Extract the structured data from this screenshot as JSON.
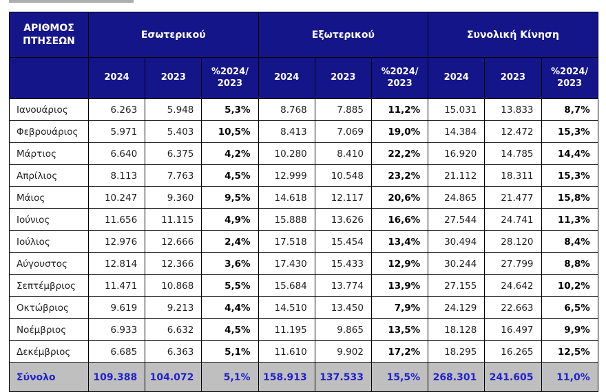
{
  "decoration": {
    "top_rule": "title-underline-fragment"
  },
  "colors": {
    "header_bg": "#15158A",
    "header_text": "#FFFFFF",
    "total_bg": "#BFBFBF",
    "total_text": "#2222CC",
    "border": "#000000",
    "body_text": "#1F1F1F"
  },
  "table": {
    "corner_header": "ΑΡΙΘΜΟΣ ΠΤΗΣΕΩΝ",
    "groups": [
      "Εσωτερικού",
      "Εξωτερικού",
      "Συνολική Κίνηση"
    ],
    "sub_headers": [
      "2024",
      "2023",
      "%2024/ 2023"
    ],
    "rows": [
      {
        "month": "Ιανουάριος",
        "values": [
          "6.263",
          "5.948",
          "5,3%",
          "8.768",
          "7.885",
          "11,2%",
          "15.031",
          "13.833",
          "8,7%"
        ]
      },
      {
        "month": "Φεβρουάριος",
        "values": [
          "5.971",
          "5.403",
          "10,5%",
          "8.413",
          "7.069",
          "19,0%",
          "14.384",
          "12.472",
          "15,3%"
        ]
      },
      {
        "month": "Μάρτιος",
        "values": [
          "6.640",
          "6.375",
          "4,2%",
          "10.280",
          "8.410",
          "22,2%",
          "16.920",
          "14.785",
          "14,4%"
        ]
      },
      {
        "month": "Απρίλιος",
        "values": [
          "8.113",
          "7.763",
          "4,5%",
          "12.999",
          "10.548",
          "23,2%",
          "21.112",
          "18.311",
          "15,3%"
        ]
      },
      {
        "month": "Μάιος",
        "values": [
          "10.247",
          "9.360",
          "9,5%",
          "14.618",
          "12.117",
          "20,6%",
          "24.865",
          "21.477",
          "15,8%"
        ]
      },
      {
        "month": "Ιούνιος",
        "values": [
          "11.656",
          "11.115",
          "4,9%",
          "15.888",
          "13.626",
          "16,6%",
          "27.544",
          "24.741",
          "11,3%"
        ]
      },
      {
        "month": "Ιούλιος",
        "values": [
          "12.976",
          "12.666",
          "2,4%",
          "17.518",
          "15.454",
          "13,4%",
          "30.494",
          "28.120",
          "8,4%"
        ]
      },
      {
        "month": "Αύγουστος",
        "values": [
          "12.814",
          "12.366",
          "3,6%",
          "17.430",
          "15.433",
          "12,9%",
          "30.244",
          "27.799",
          "8,8%"
        ]
      },
      {
        "month": "Σεπτέμβριος",
        "values": [
          "11.471",
          "10.868",
          "5,5%",
          "15.684",
          "13.774",
          "13,9%",
          "27.155",
          "24.642",
          "10,2%"
        ]
      },
      {
        "month": "Οκτώβριος",
        "values": [
          "9.619",
          "9.213",
          "4,4%",
          "14.510",
          "13.450",
          "7,9%",
          "24.129",
          "22.663",
          "6,5%"
        ]
      },
      {
        "month": "Νοέμβριος",
        "values": [
          "6.933",
          "6.632",
          "4,5%",
          "11.195",
          "9.865",
          "13,5%",
          "18.128",
          "16.497",
          "9,9%"
        ]
      },
      {
        "month": "Δεκέμβριος",
        "values": [
          "6.685",
          "6.363",
          "5,1%",
          "11.610",
          "9.902",
          "17,2%",
          "18.295",
          "16.265",
          "12,5%"
        ]
      }
    ],
    "total": {
      "label": "Σύνολο",
      "values": [
        "109.388",
        "104.072",
        "5,1%",
        "158.913",
        "137.533",
        "15,5%",
        "268.301",
        "241.605",
        "11,0%"
      ]
    }
  }
}
